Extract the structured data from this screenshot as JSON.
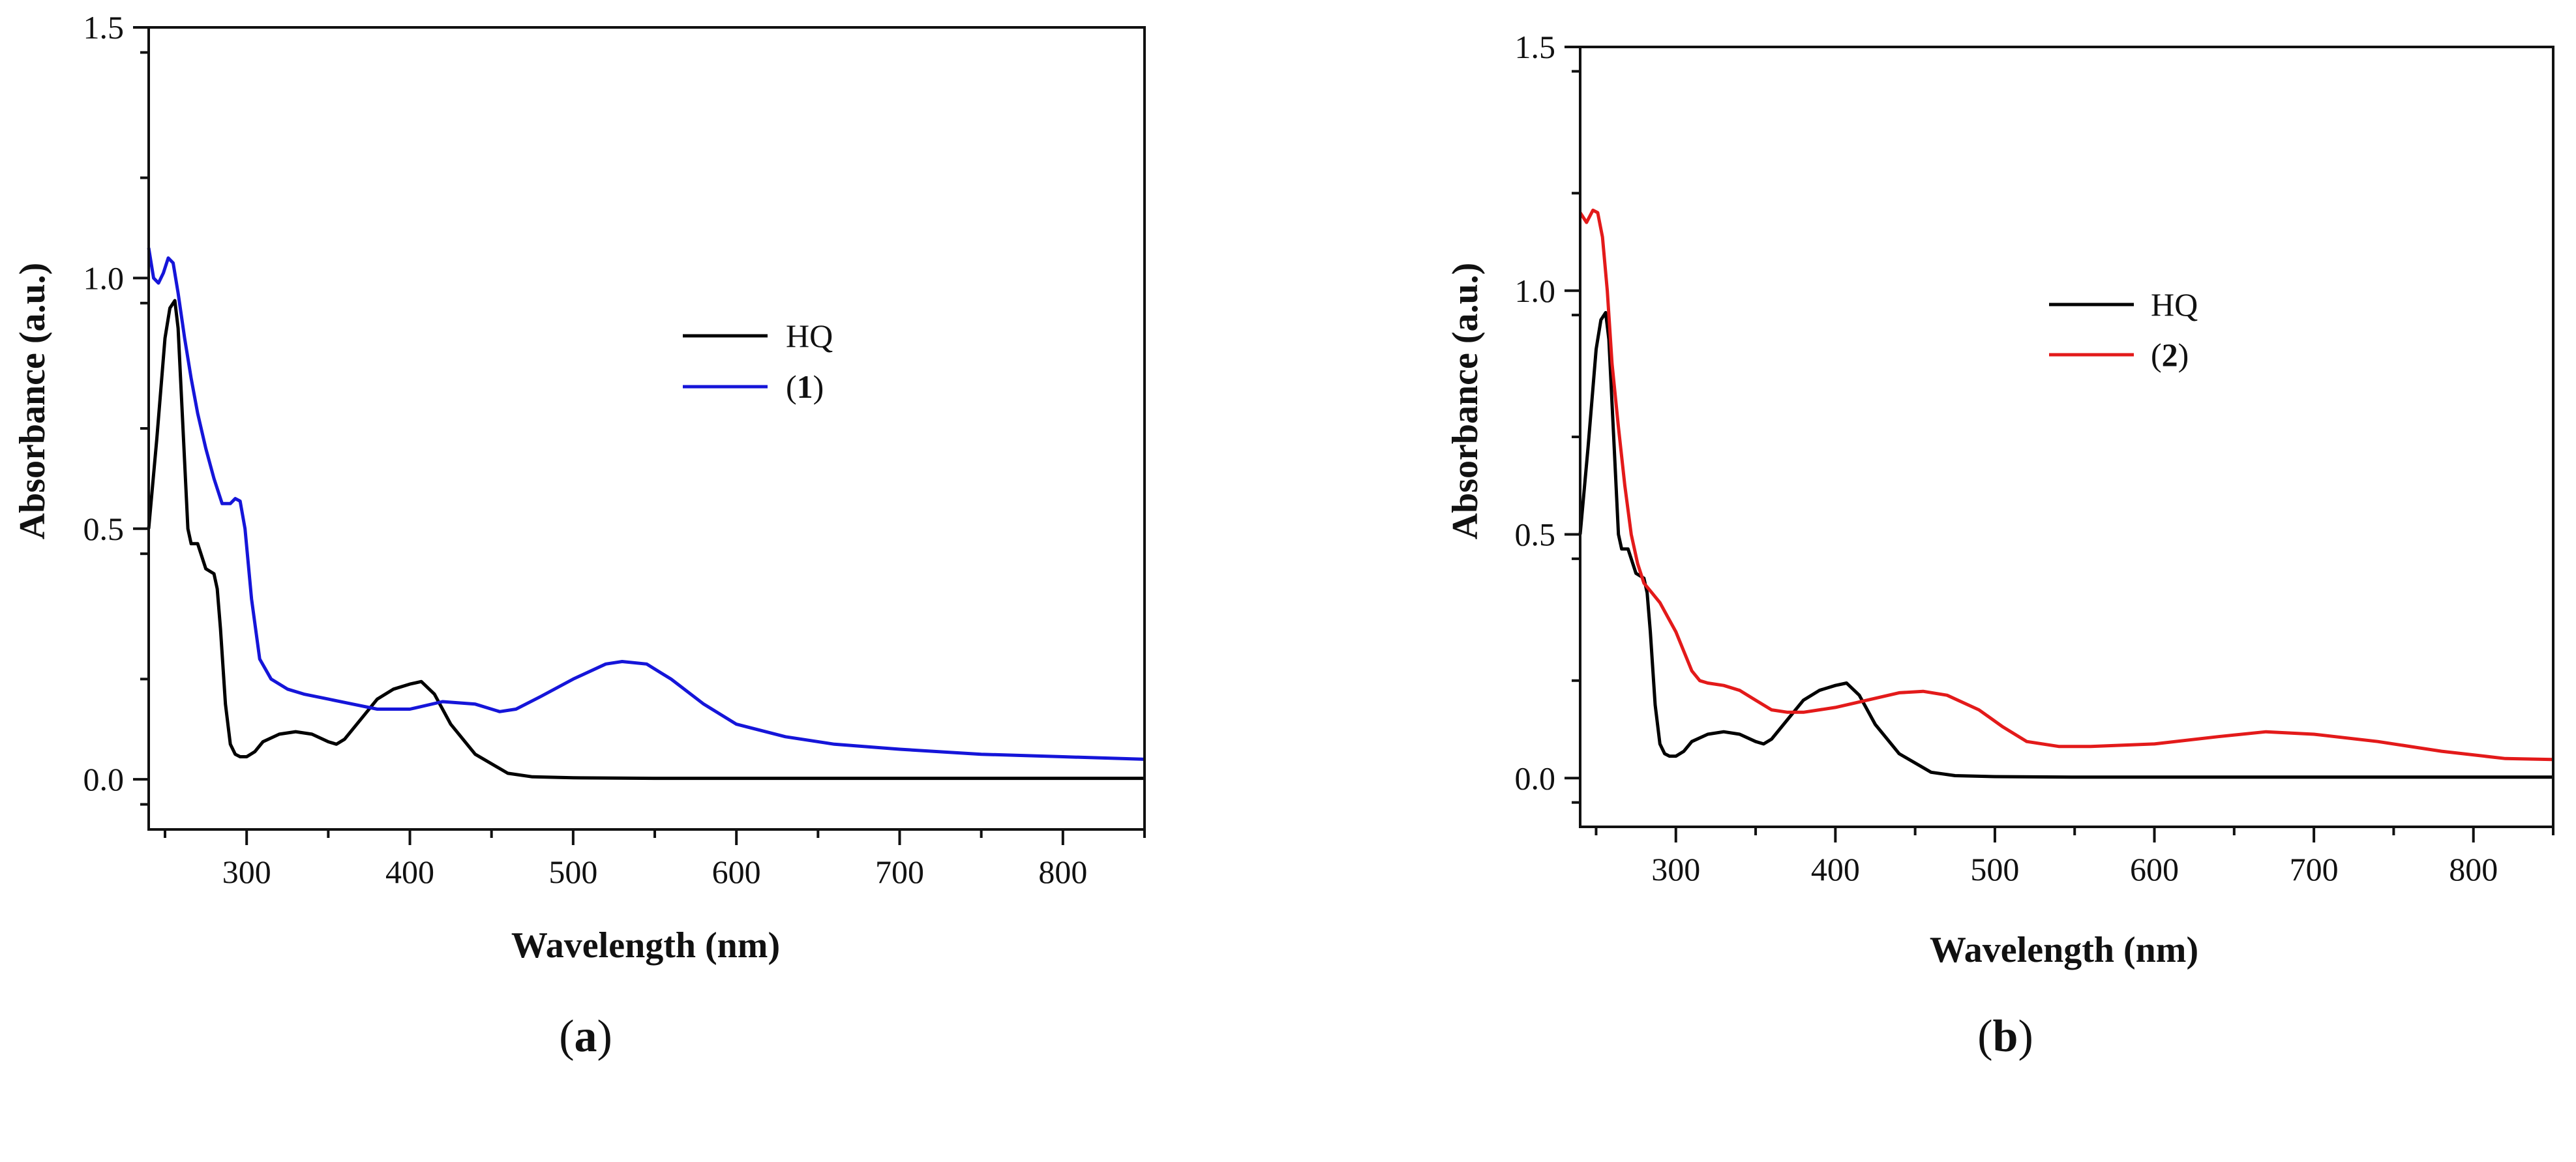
{
  "chart_data": [
    {
      "type": "line",
      "panel_label": {
        "open": "(",
        "letter": "a",
        "close": ")"
      },
      "title": "",
      "xlabel": "Wavelength (nm)",
      "ylabel": "Absorbance (a.u.)",
      "xlim": [
        240,
        850
      ],
      "ylim": [
        -0.1,
        1.5
      ],
      "xticks": [
        300,
        400,
        500,
        600,
        700,
        800
      ],
      "yticks": [
        0.0,
        0.5,
        1.0,
        1.5
      ],
      "xtick_labels": [
        "300",
        "400",
        "500",
        "600",
        "700",
        "800"
      ],
      "ytick_labels": [
        "0.0",
        "0.5",
        "1.0",
        "1.5"
      ],
      "grid": false,
      "legend_position": "upper-middle",
      "series": [
        {
          "name": "HQ",
          "label_parts": {
            "open": "",
            "main": "HQ",
            "close": ""
          },
          "color": "#000000",
          "x": [
            240,
            245,
            250,
            253,
            256,
            258,
            261,
            264,
            266,
            270,
            275,
            280,
            282,
            284,
            287,
            290,
            293,
            296,
            300,
            305,
            310,
            320,
            330,
            340,
            350,
            355,
            360,
            370,
            380,
            390,
            400,
            407,
            415,
            425,
            440,
            460,
            475,
            500,
            550,
            600,
            650,
            700,
            750,
            800,
            850
          ],
          "y": [
            0.5,
            0.68,
            0.88,
            0.94,
            0.955,
            0.9,
            0.7,
            0.5,
            0.47,
            0.47,
            0.42,
            0.41,
            0.38,
            0.3,
            0.15,
            0.07,
            0.05,
            0.045,
            0.045,
            0.055,
            0.075,
            0.09,
            0.095,
            0.09,
            0.075,
            0.07,
            0.08,
            0.12,
            0.16,
            0.18,
            0.19,
            0.195,
            0.17,
            0.11,
            0.05,
            0.012,
            0.005,
            0.003,
            0.002,
            0.002,
            0.002,
            0.002,
            0.002,
            0.002,
            0.002
          ]
        },
        {
          "name": "(1)",
          "label_parts": {
            "open": "(",
            "main": "1",
            "close": ")"
          },
          "color": "#1515d9",
          "x": [
            240,
            243,
            246,
            249,
            252,
            255,
            258,
            262,
            266,
            270,
            275,
            280,
            285,
            290,
            293,
            296,
            299,
            303,
            308,
            315,
            325,
            335,
            350,
            365,
            380,
            400,
            420,
            440,
            455,
            465,
            480,
            500,
            520,
            530,
            545,
            560,
            580,
            600,
            630,
            660,
            700,
            750,
            800,
            850
          ],
          "y": [
            1.06,
            1.0,
            0.99,
            1.01,
            1.04,
            1.03,
            0.97,
            0.88,
            0.8,
            0.73,
            0.66,
            0.6,
            0.55,
            0.55,
            0.56,
            0.555,
            0.5,
            0.36,
            0.24,
            0.2,
            0.18,
            0.17,
            0.16,
            0.15,
            0.14,
            0.14,
            0.155,
            0.15,
            0.135,
            0.14,
            0.165,
            0.2,
            0.23,
            0.235,
            0.23,
            0.2,
            0.15,
            0.11,
            0.085,
            0.07,
            0.06,
            0.05,
            0.045,
            0.04
          ]
        }
      ]
    },
    {
      "type": "line",
      "panel_label": {
        "open": "(",
        "letter": "b",
        "close": ")"
      },
      "title": "",
      "xlabel": "Wavelength (nm)",
      "ylabel": "Absorbance (a.u.)",
      "xlim": [
        240,
        850
      ],
      "ylim": [
        -0.1,
        1.5
      ],
      "xticks": [
        300,
        400,
        500,
        600,
        700,
        800
      ],
      "yticks": [
        0.0,
        0.5,
        1.0,
        1.5
      ],
      "xtick_labels": [
        "300",
        "400",
        "500",
        "600",
        "700",
        "800"
      ],
      "ytick_labels": [
        "0.0",
        "0.5",
        "1.0",
        "1.5"
      ],
      "grid": false,
      "legend_position": "upper-middle",
      "series": [
        {
          "name": "HQ",
          "label_parts": {
            "open": "",
            "main": "HQ",
            "close": ""
          },
          "color": "#000000",
          "x": [
            240,
            245,
            250,
            253,
            256,
            258,
            261,
            264,
            266,
            270,
            275,
            280,
            282,
            284,
            287,
            290,
            293,
            296,
            300,
            305,
            310,
            320,
            330,
            340,
            350,
            355,
            360,
            370,
            380,
            390,
            400,
            407,
            415,
            425,
            440,
            460,
            475,
            500,
            550,
            600,
            650,
            700,
            750,
            800,
            850
          ],
          "y": [
            0.5,
            0.68,
            0.88,
            0.94,
            0.955,
            0.9,
            0.7,
            0.5,
            0.47,
            0.47,
            0.42,
            0.41,
            0.38,
            0.3,
            0.15,
            0.07,
            0.05,
            0.045,
            0.045,
            0.055,
            0.075,
            0.09,
            0.095,
            0.09,
            0.075,
            0.07,
            0.08,
            0.12,
            0.16,
            0.18,
            0.19,
            0.195,
            0.17,
            0.11,
            0.05,
            0.012,
            0.005,
            0.003,
            0.002,
            0.002,
            0.002,
            0.002,
            0.002,
            0.002,
            0.002
          ]
        },
        {
          "name": "(2)",
          "label_parts": {
            "open": "(",
            "main": "2",
            "close": ")"
          },
          "color": "#e31a1a",
          "x": [
            240,
            244,
            248,
            251,
            254,
            257,
            260,
            264,
            268,
            272,
            276,
            280,
            285,
            290,
            295,
            300,
            305,
            310,
            315,
            320,
            330,
            340,
            350,
            360,
            370,
            380,
            400,
            420,
            440,
            455,
            470,
            490,
            505,
            520,
            540,
            560,
            600,
            640,
            670,
            700,
            740,
            780,
            820,
            850
          ],
          "y": [
            1.16,
            1.14,
            1.165,
            1.16,
            1.11,
            1.0,
            0.85,
            0.72,
            0.6,
            0.5,
            0.44,
            0.4,
            0.38,
            0.36,
            0.33,
            0.3,
            0.26,
            0.22,
            0.2,
            0.195,
            0.19,
            0.18,
            0.16,
            0.14,
            0.135,
            0.135,
            0.145,
            0.16,
            0.175,
            0.178,
            0.17,
            0.14,
            0.105,
            0.075,
            0.065,
            0.065,
            0.07,
            0.085,
            0.095,
            0.09,
            0.075,
            0.055,
            0.04,
            0.038
          ]
        }
      ]
    }
  ]
}
